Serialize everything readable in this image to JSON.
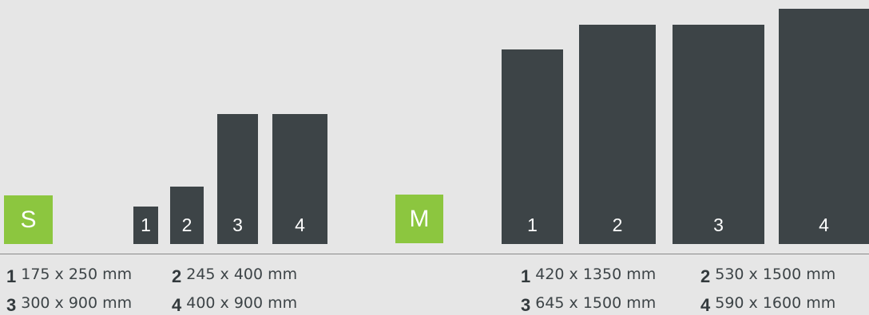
{
  "colors": {
    "background": "#e6e6e6",
    "bar": "#3d4447",
    "badge": "#8cc63f",
    "rule": "#8a8a8a"
  },
  "series_s": {
    "label": "S",
    "bars": [
      {
        "num": "1",
        "label": "175 x 250 mm"
      },
      {
        "num": "2",
        "label": "245 x 400 mm"
      },
      {
        "num": "3",
        "label": "300 x 900 mm"
      },
      {
        "num": "4",
        "label": "400 x 900 mm"
      }
    ]
  },
  "series_m": {
    "label": "M",
    "bars": [
      {
        "num": "1",
        "label": "420 x 1350 mm"
      },
      {
        "num": "2",
        "label": "530 x 1500 mm"
      },
      {
        "num": "3",
        "label": "645 x 1500 mm"
      },
      {
        "num": "4",
        "label": "590 x 1600 mm"
      }
    ]
  }
}
